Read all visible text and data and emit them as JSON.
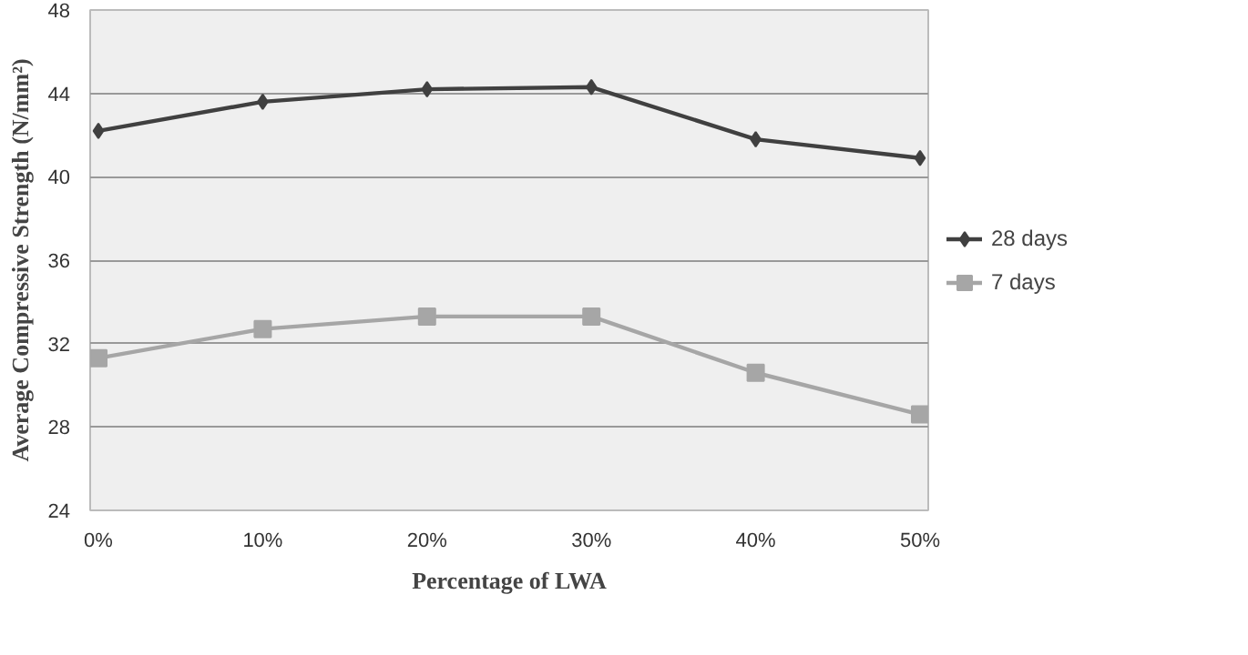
{
  "chart_data": {
    "type": "line",
    "xlabel": "Percentage of LWA",
    "ylabel": "Average Compressive Strength (N/mm²)",
    "categories": [
      "0%",
      "10%",
      "20%",
      "30%",
      "40%",
      "50%"
    ],
    "series": [
      {
        "name": "28 days",
        "color": "#404040",
        "marker": "diamond",
        "values": [
          42.2,
          43.6,
          44.2,
          44.3,
          41.8,
          40.9
        ]
      },
      {
        "name": "7 days",
        "color": "#a6a6a6",
        "marker": "square",
        "values": [
          31.3,
          32.7,
          33.3,
          33.3,
          30.6,
          28.6
        ]
      }
    ],
    "ylim": [
      24,
      48
    ],
    "yticks": [
      24,
      28,
      32,
      36,
      40,
      44,
      48
    ],
    "grid": "y",
    "legend": "right",
    "line_style": "solid"
  }
}
